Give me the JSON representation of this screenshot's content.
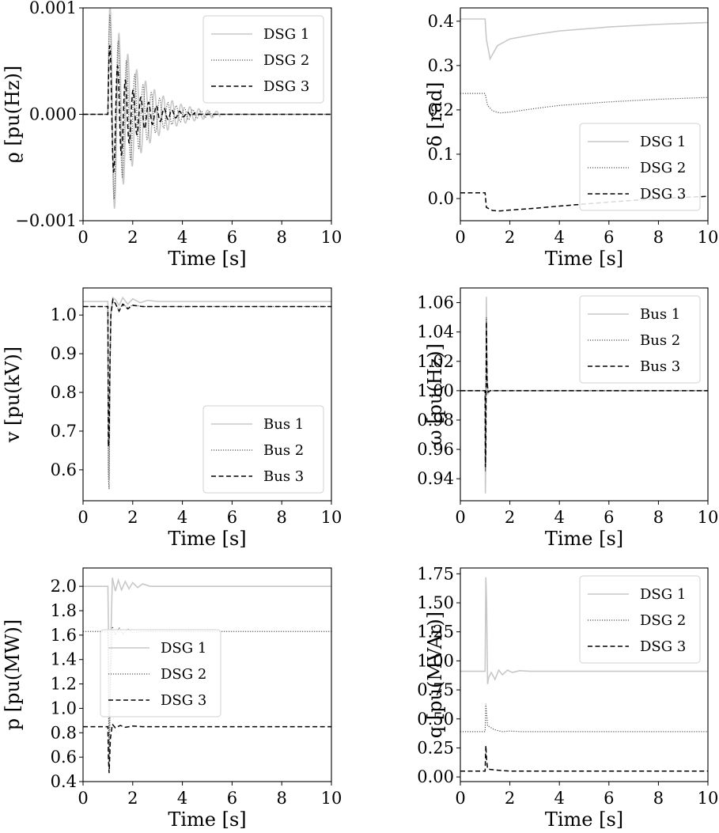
{
  "chart_data": [
    {
      "type": "line",
      "xlabel": "Time [s]",
      "ylabel": "ϱ [pu(Hz)]",
      "xlim": [
        0,
        10
      ],
      "ylim": [
        -0.001,
        0.001
      ],
      "xticks": [
        "0",
        "2",
        "4",
        "6",
        "8",
        "10"
      ],
      "yticks": [
        "−0.001",
        "0.000",
        "0.001"
      ],
      "ytick_values": [
        -0.001,
        0.0,
        0.001
      ],
      "legend": "top-right",
      "series": [
        {
          "name": "DSG 1",
          "style": "solid",
          "color": "#c8c8c8",
          "disturbance_time": 1.0,
          "steady": 0.0,
          "peak_amplitude": 0.0011,
          "frequency_hz": 2.8,
          "decay_time": 1.2,
          "visible_until": 5.5
        },
        {
          "name": "DSG 2",
          "style": "dotted",
          "color": "#555555",
          "disturbance_time": 1.0,
          "steady": 0.0,
          "peak_amplitude": 0.001,
          "frequency_hz": 3.0,
          "decay_time": 1.1,
          "visible_until": 5.2
        },
        {
          "name": "DSG 3",
          "style": "dashed",
          "color": "#000000",
          "disturbance_time": 1.0,
          "steady": 0.0,
          "peak_amplitude": 0.0007,
          "frequency_hz": 3.2,
          "decay_time": 0.9,
          "visible_until": 4.5
        }
      ]
    },
    {
      "type": "line",
      "xlabel": "Time [s]",
      "ylabel": "δ [rad]",
      "xlim": [
        0,
        10
      ],
      "ylim": [
        -0.05,
        0.43
      ],
      "xticks": [
        "0",
        "2",
        "4",
        "6",
        "8",
        "10"
      ],
      "yticks": [
        "0.0",
        "0.1",
        "0.2",
        "0.3",
        "0.4"
      ],
      "ytick_values": [
        0.0,
        0.1,
        0.2,
        0.3,
        0.4
      ],
      "legend": "center-right",
      "series": [
        {
          "name": "DSG 1",
          "style": "solid",
          "color": "#c8c8c8",
          "x": [
            0,
            1.0,
            1.05,
            1.2,
            1.5,
            2,
            3,
            4,
            6,
            8,
            10
          ],
          "values": [
            0.405,
            0.405,
            0.36,
            0.315,
            0.345,
            0.36,
            0.37,
            0.378,
            0.387,
            0.393,
            0.397
          ]
        },
        {
          "name": "DSG 2",
          "style": "dotted",
          "color": "#555555",
          "x": [
            0,
            1.0,
            1.1,
            1.3,
            1.6,
            2,
            3,
            4,
            6,
            8,
            10
          ],
          "values": [
            0.237,
            0.237,
            0.21,
            0.198,
            0.193,
            0.195,
            0.203,
            0.21,
            0.218,
            0.224,
            0.228
          ]
        },
        {
          "name": "DSG 3",
          "style": "dashed",
          "color": "#000000",
          "x": [
            0,
            1.0,
            1.05,
            1.3,
            1.6,
            2,
            3,
            4,
            6,
            8,
            10
          ],
          "values": [
            0.013,
            0.013,
            -0.02,
            -0.027,
            -0.028,
            -0.026,
            -0.022,
            -0.017,
            -0.008,
            0.0,
            0.005
          ]
        }
      ]
    },
    {
      "type": "line",
      "xlabel": "Time [s]",
      "ylabel": "v [pu(kV)]",
      "xlim": [
        0,
        10
      ],
      "ylim": [
        0.52,
        1.07
      ],
      "xticks": [
        "0",
        "2",
        "4",
        "6",
        "8",
        "10"
      ],
      "yticks": [
        "0.6",
        "0.7",
        "0.8",
        "0.9",
        "1.0"
      ],
      "ytick_values": [
        0.6,
        0.7,
        0.8,
        0.9,
        1.0
      ],
      "legend": "bottom-right",
      "series": [
        {
          "name": "Bus 1",
          "style": "solid",
          "color": "#c8c8c8",
          "x": [
            0,
            1.0,
            1.02,
            1.05,
            1.08,
            1.12,
            1.2,
            1.3,
            1.45,
            1.6,
            1.8,
            2.0,
            2.3,
            2.6,
            3.0,
            10
          ],
          "values": [
            1.035,
            1.035,
            0.6,
            0.575,
            0.85,
            1.01,
            1.045,
            1.04,
            1.025,
            1.045,
            1.028,
            1.042,
            1.032,
            1.038,
            1.035,
            1.035
          ]
        },
        {
          "name": "Bus 2",
          "style": "dotted",
          "color": "#555555",
          "x": [
            0,
            1.0,
            1.02,
            1.05,
            1.08,
            1.12,
            1.2,
            1.3,
            1.45,
            1.6,
            1.8,
            2.0,
            2.4,
            10
          ],
          "values": [
            1.022,
            1.022,
            0.58,
            0.55,
            0.82,
            1.0,
            1.035,
            1.03,
            1.012,
            1.03,
            1.018,
            1.026,
            1.022,
            1.022
          ]
        },
        {
          "name": "Bus 3",
          "style": "dashed",
          "color": "#000000",
          "x": [
            0,
            1.0,
            1.02,
            1.05,
            1.08,
            1.12,
            1.2,
            1.3,
            1.45,
            1.6,
            1.8,
            2.0,
            2.4,
            10
          ],
          "values": [
            1.022,
            1.022,
            0.66,
            0.68,
            0.86,
            1.0,
            1.04,
            1.03,
            1.01,
            1.028,
            1.016,
            1.025,
            1.022,
            1.022
          ]
        }
      ]
    },
    {
      "type": "line",
      "xlabel": "Time [s]",
      "ylabel": "ω [pu(Hz)]",
      "xlim": [
        0,
        10
      ],
      "ylim": [
        0.925,
        1.07
      ],
      "xticks": [
        "0",
        "2",
        "4",
        "6",
        "8",
        "10"
      ],
      "yticks": [
        "0.94",
        "0.96",
        "0.98",
        "1.00",
        "1.02",
        "1.04",
        "1.06"
      ],
      "ytick_values": [
        0.94,
        0.96,
        0.98,
        1.0,
        1.02,
        1.04,
        1.06
      ],
      "legend": "top-right",
      "series": [
        {
          "name": "Bus 1",
          "style": "solid",
          "color": "#c8c8c8",
          "x": [
            0,
            1.0,
            1.01,
            1.03,
            1.05,
            1.08,
            1.12,
            1.2,
            10
          ],
          "values": [
            1.0,
            1.0,
            0.93,
            0.95,
            1.064,
            1.01,
            0.998,
            1.0,
            1.0
          ]
        },
        {
          "name": "Bus 2",
          "style": "dotted",
          "color": "#555555",
          "x": [
            0,
            1.0,
            1.01,
            1.03,
            1.05,
            1.08,
            1.12,
            1.2,
            10
          ],
          "values": [
            1.0,
            1.0,
            0.945,
            0.96,
            1.05,
            1.008,
            0.999,
            1.0,
            1.0
          ]
        },
        {
          "name": "Bus 3",
          "style": "dashed",
          "color": "#000000",
          "x": [
            0,
            1.0,
            1.01,
            1.03,
            1.05,
            1.08,
            1.12,
            1.2,
            10
          ],
          "values": [
            1.0,
            1.0,
            0.948,
            0.962,
            1.047,
            1.006,
            0.999,
            1.0,
            1.0
          ]
        }
      ]
    },
    {
      "type": "line",
      "xlabel": "Time [s]",
      "ylabel": "p [pu(MW)]",
      "xlim": [
        0,
        10
      ],
      "ylim": [
        0.4,
        2.15
      ],
      "xticks": [
        "0",
        "2",
        "4",
        "6",
        "8",
        "10"
      ],
      "yticks": [
        "0.4",
        "0.6",
        "0.8",
        "1.0",
        "1.2",
        "1.4",
        "1.6",
        "1.8",
        "2.0"
      ],
      "ytick_values": [
        0.4,
        0.6,
        0.8,
        1.0,
        1.2,
        1.4,
        1.6,
        1.8,
        2.0
      ],
      "legend": "center-left",
      "series": [
        {
          "name": "DSG 1",
          "style": "solid",
          "color": "#c8c8c8",
          "x": [
            0,
            1.0,
            1.02,
            1.05,
            1.1,
            1.18,
            1.3,
            1.42,
            1.55,
            1.7,
            1.85,
            2.0,
            2.2,
            2.4,
            2.7,
            3.0,
            10
          ],
          "values": [
            2.0,
            2.0,
            1.7,
            0.6,
            1.4,
            2.07,
            1.96,
            2.05,
            1.97,
            2.04,
            1.98,
            2.03,
            1.99,
            2.02,
            2.0,
            2.0,
            2.0
          ]
        },
        {
          "name": "DSG 2",
          "style": "dotted",
          "color": "#555555",
          "x": [
            0,
            1.0,
            1.02,
            1.05,
            1.1,
            1.18,
            1.3,
            1.45,
            1.6,
            1.8,
            2.0,
            2.4,
            10
          ],
          "values": [
            1.63,
            1.63,
            1.2,
            0.52,
            1.2,
            1.67,
            1.6,
            1.66,
            1.61,
            1.65,
            1.62,
            1.63,
            1.63
          ]
        },
        {
          "name": "DSG 3",
          "style": "dashed",
          "color": "#000000",
          "x": [
            0,
            1.0,
            1.02,
            1.05,
            1.1,
            1.18,
            1.3,
            1.5,
            1.7,
            2.0,
            2.4,
            10
          ],
          "values": [
            0.85,
            0.85,
            0.6,
            0.47,
            0.75,
            0.87,
            0.84,
            0.86,
            0.845,
            0.855,
            0.85,
            0.85
          ]
        }
      ]
    },
    {
      "type": "line",
      "xlabel": "Time [s]",
      "ylabel": "q [pu(MVAr)]",
      "xlim": [
        0,
        10
      ],
      "ylim": [
        -0.04,
        1.8
      ],
      "xticks": [
        "0",
        "2",
        "4",
        "6",
        "8",
        "10"
      ],
      "yticks": [
        "0.00",
        "0.25",
        "0.50",
        "0.75",
        "1.00",
        "1.25",
        "1.50",
        "1.75"
      ],
      "ytick_values": [
        0.0,
        0.25,
        0.5,
        0.75,
        1.0,
        1.25,
        1.5,
        1.75
      ],
      "legend": "top-right",
      "series": [
        {
          "name": "DSG 1",
          "style": "solid",
          "color": "#c8c8c8",
          "x": [
            0,
            1.0,
            1.03,
            1.06,
            1.1,
            1.15,
            1.25,
            1.4,
            1.55,
            1.7,
            1.9,
            2.1,
            2.4,
            2.8,
            10
          ],
          "values": [
            0.91,
            0.91,
            1.72,
            1.5,
            0.8,
            0.86,
            0.9,
            0.84,
            0.92,
            0.88,
            0.92,
            0.9,
            0.915,
            0.91,
            0.91
          ]
        },
        {
          "name": "DSG 2",
          "style": "dotted",
          "color": "#555555",
          "x": [
            0,
            1.0,
            1.03,
            1.06,
            1.1,
            1.2,
            1.35,
            1.5,
            1.7,
            2.0,
            2.5,
            10
          ],
          "values": [
            0.39,
            0.39,
            0.63,
            0.55,
            0.44,
            0.43,
            0.41,
            0.4,
            0.39,
            0.395,
            0.39,
            0.39
          ]
        },
        {
          "name": "DSG 3",
          "style": "dashed",
          "color": "#000000",
          "x": [
            0,
            1.0,
            1.03,
            1.06,
            1.1,
            1.2,
            1.4,
            1.7,
            2.0,
            10
          ],
          "values": [
            0.05,
            0.05,
            0.27,
            0.15,
            0.07,
            0.065,
            0.06,
            0.055,
            0.05,
            0.05
          ]
        }
      ]
    }
  ]
}
